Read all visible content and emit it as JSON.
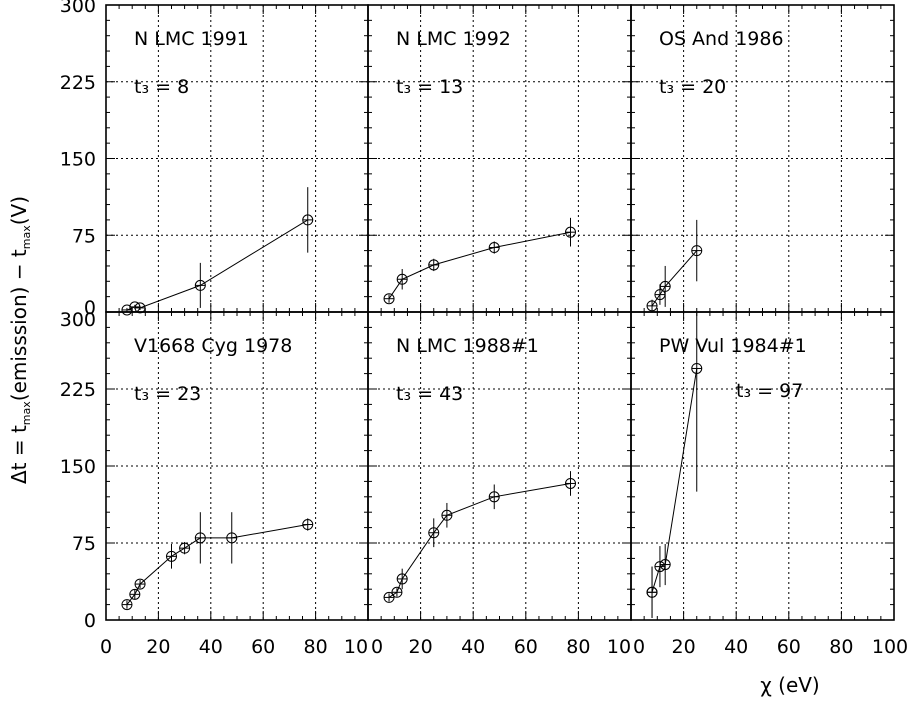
{
  "chart_data": {
    "type": "scatter",
    "xlabel": "χ (eV)",
    "ylabel": "Δt = t_max(emisssion) − t_max(V)",
    "xlim": [
      0,
      100
    ],
    "ylim": [
      0,
      300
    ],
    "x_ticks": [
      "0",
      "20",
      "40",
      "60",
      "80",
      "10",
      "0",
      "20",
      "40",
      "60",
      "80",
      "10",
      "0",
      "20",
      "40",
      "60",
      "80",
      "100"
    ],
    "y_ticks_top": [
      "0",
      "75",
      "150",
      "225",
      "300"
    ],
    "y_ticks_bottom": [
      "0",
      "75",
      "150",
      "225",
      "300"
    ],
    "grid": true,
    "panels": [
      {
        "name": "N LMC 1991",
        "t3": "t₃ = 8",
        "x": [
          8,
          11,
          13,
          36,
          77
        ],
        "y": [
          2,
          5,
          4,
          26,
          90
        ],
        "yerr": [
          2,
          2,
          2,
          22,
          32
        ]
      },
      {
        "name": "N LMC 1992",
        "t3": "t₃ = 13",
        "x": [
          8,
          13,
          25,
          48,
          77
        ],
        "y": [
          13,
          32,
          46,
          63,
          78
        ],
        "yerr": [
          4,
          10,
          6,
          6,
          14
        ]
      },
      {
        "name": "OS And 1986",
        "t3": "t₃ = 20",
        "x": [
          8,
          11,
          13,
          25
        ],
        "y": [
          6,
          17,
          25,
          60
        ],
        "yerr": [
          6,
          10,
          20,
          30
        ]
      },
      {
        "name": "V1668 Cyg 1978",
        "t3": "t₃ = 23",
        "x": [
          8,
          11,
          13,
          25,
          30,
          36,
          48,
          77
        ],
        "y": [
          15,
          25,
          35,
          62,
          70,
          80,
          80,
          93
        ],
        "yerr": [
          4,
          5,
          4,
          12,
          6,
          25,
          25,
          6
        ]
      },
      {
        "name": "N LMC 1988#1",
        "t3": "t₃ = 43",
        "x": [
          8,
          11,
          13,
          25,
          30,
          48,
          77
        ],
        "y": [
          22,
          27,
          40,
          85,
          102,
          120,
          133
        ],
        "yerr": [
          4,
          4,
          10,
          14,
          12,
          12,
          12
        ]
      },
      {
        "name": "PW Vul 1984#1",
        "t3": "t₃ = 97",
        "x": [
          8,
          8,
          11,
          13,
          25
        ],
        "y": [
          27,
          27,
          52,
          54,
          245
        ],
        "yerr": [
          25,
          25,
          20,
          20,
          120
        ]
      }
    ]
  }
}
